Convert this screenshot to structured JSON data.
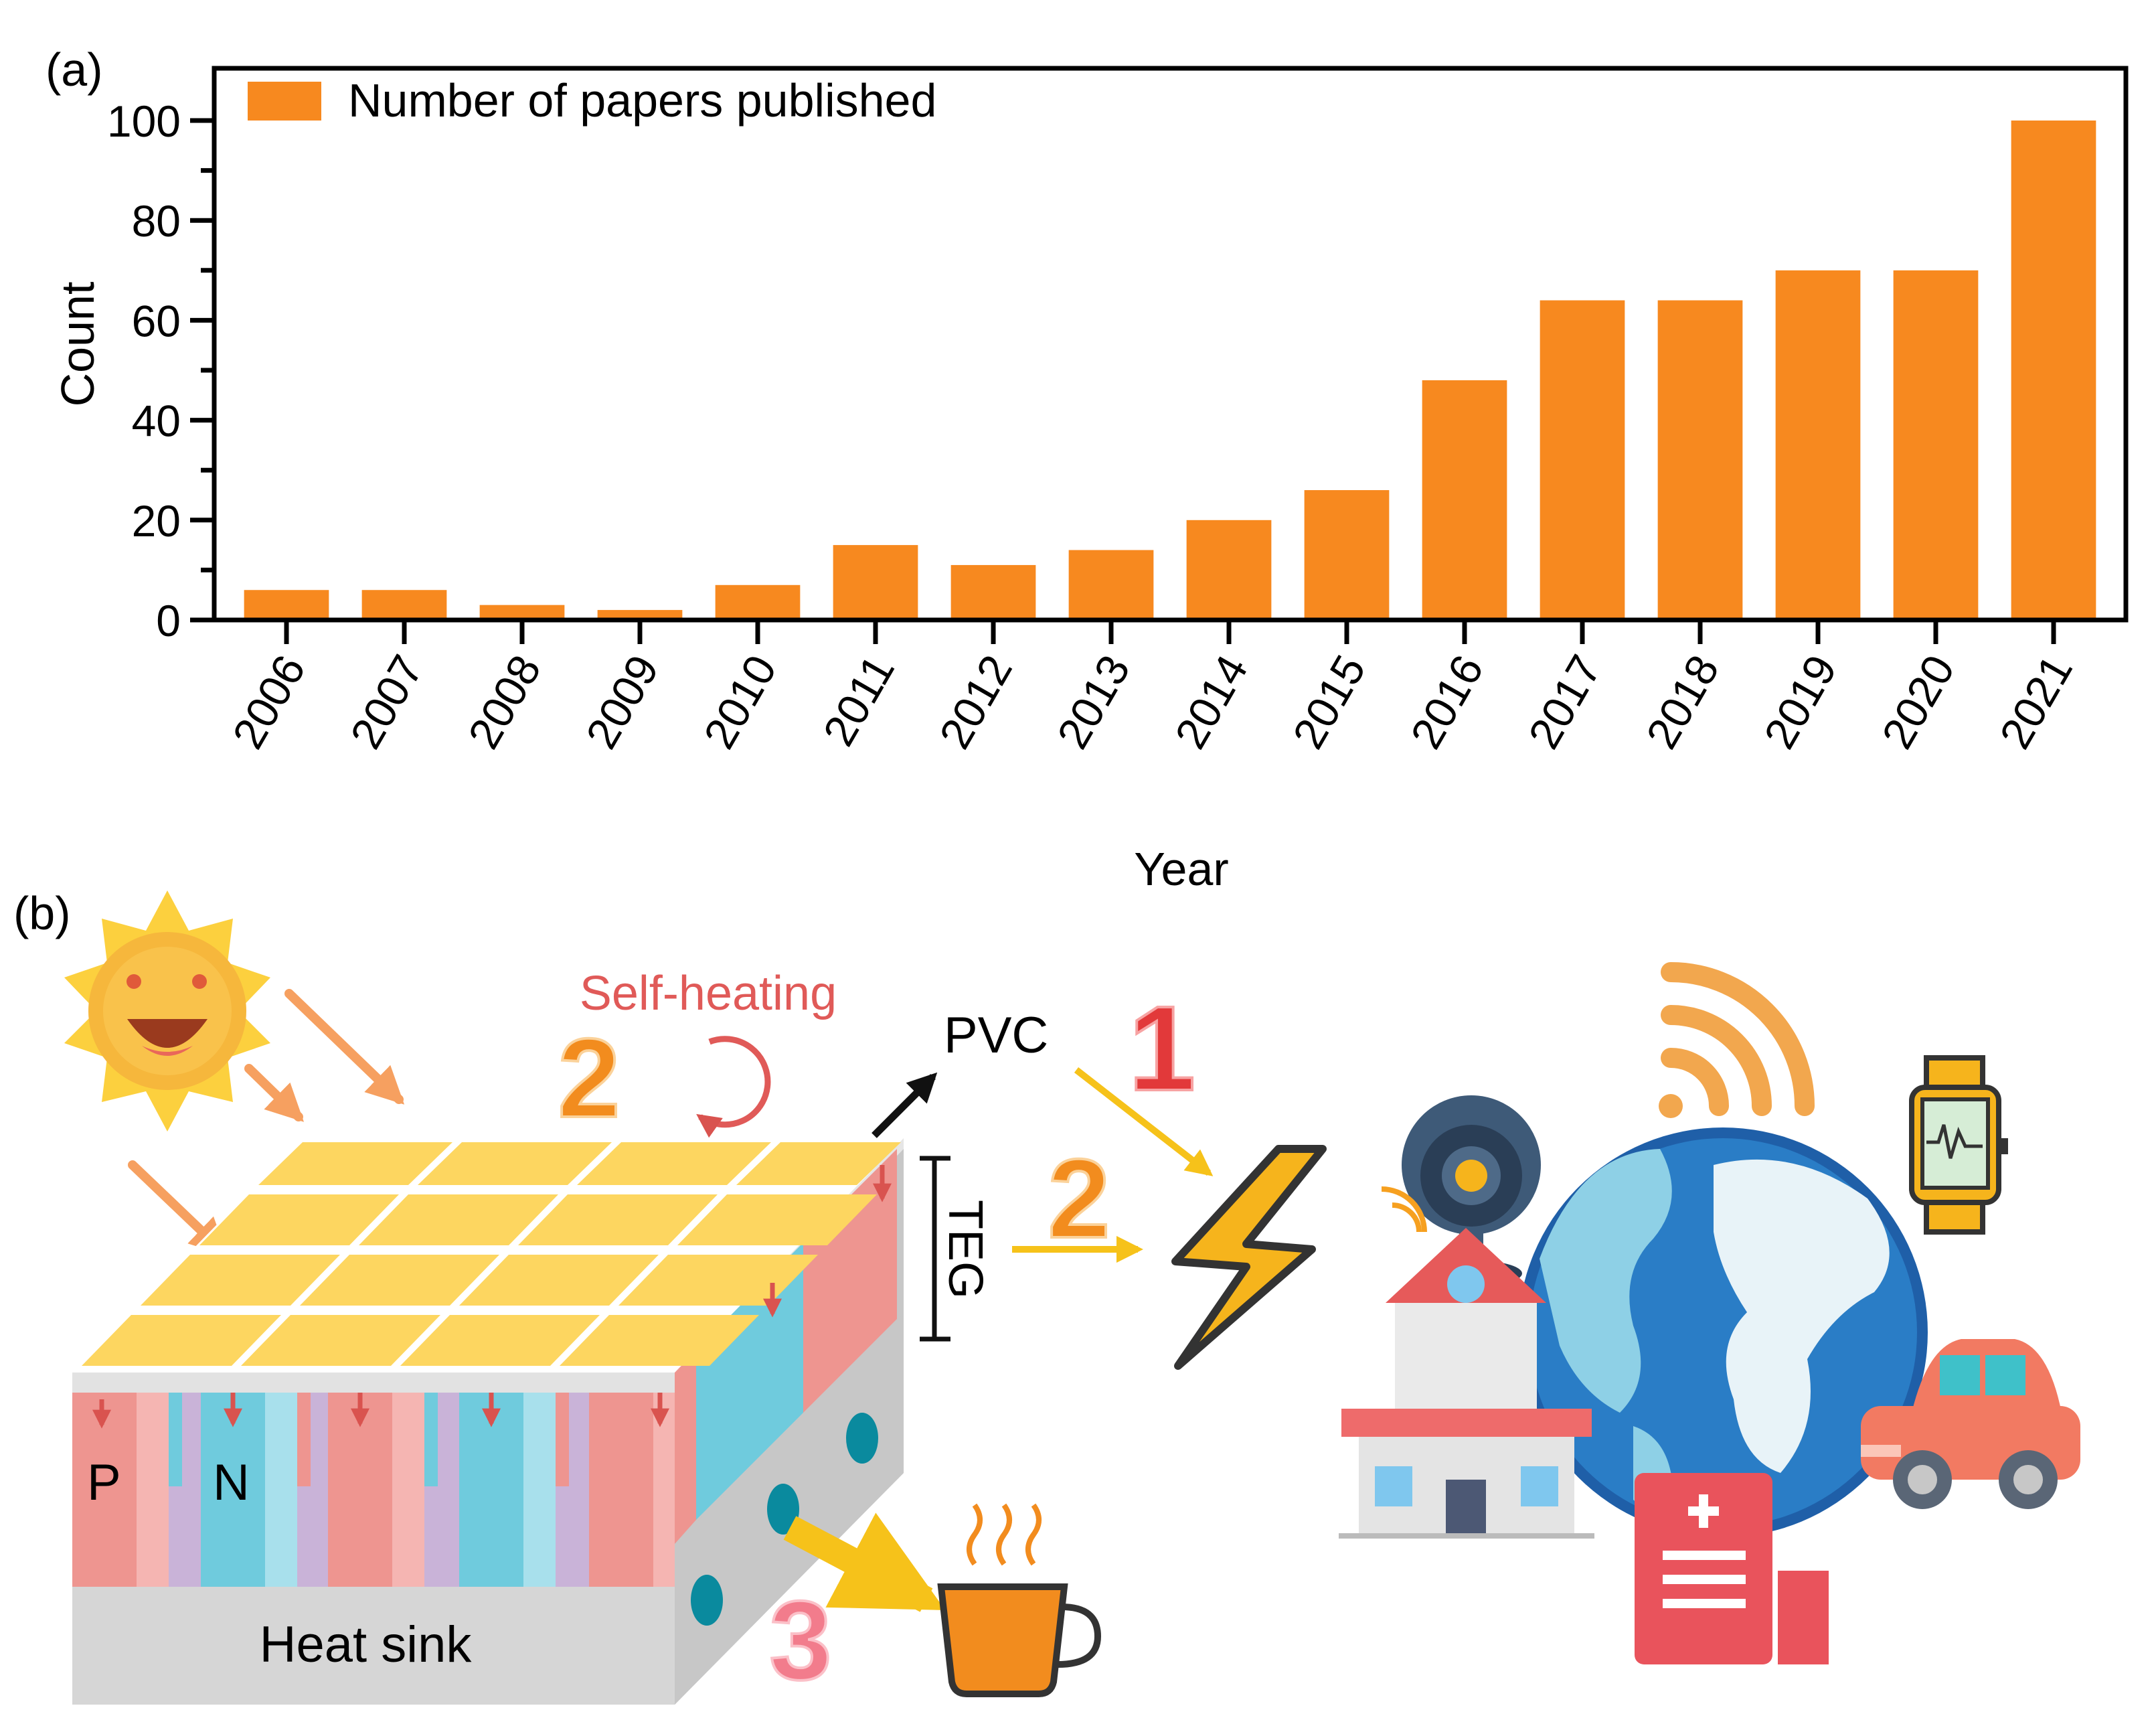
{
  "panel_a_label": "(a)",
  "panel_b_label": "(b)",
  "chart_data": {
    "type": "bar",
    "categories": [
      "2006",
      "2007",
      "2008",
      "2009",
      "2010",
      "2011",
      "2012",
      "2013",
      "2014",
      "2015",
      "2016",
      "2017",
      "2018",
      "2019",
      "2020",
      "2021"
    ],
    "series": [
      {
        "name": "Number of papers published",
        "values": [
          6,
          6,
          3,
          2,
          7,
          15,
          11,
          14,
          20,
          26,
          48,
          64,
          64,
          70,
          70,
          100
        ]
      }
    ],
    "xlabel": "Year",
    "ylabel": "Count",
    "ylim": [
      0,
      110
    ],
    "yticks": [
      0,
      20,
      40,
      60,
      80,
      100
    ],
    "grid": false,
    "legend_position": "top-left",
    "bar_color": "#F7891F"
  },
  "diagram": {
    "self_heating_label": "Self-heating",
    "pvc_label": "PVC",
    "teg_label": "TEG",
    "p_label": "P",
    "n_label": "N",
    "heat_sink_label": "Heat sink",
    "step_1": "1",
    "step_2": "2",
    "step_3": "3",
    "colors": {
      "solar_cell": "#FDD660",
      "p_leg": "#EE9590",
      "n_leg": "#6FCBDD",
      "heat_sink": "#CFCFCF",
      "arrow_orange": "#F6A060",
      "arrow_yellow": "#F6C21A",
      "self_heating": "#E05A58"
    },
    "icons": [
      "sun-icon",
      "webcam-icon",
      "wifi-icon",
      "smartwatch-icon",
      "globe-icon",
      "house-icon",
      "car-icon",
      "medical-report-icon",
      "coffee-cup-icon",
      "lightning-icon"
    ]
  }
}
